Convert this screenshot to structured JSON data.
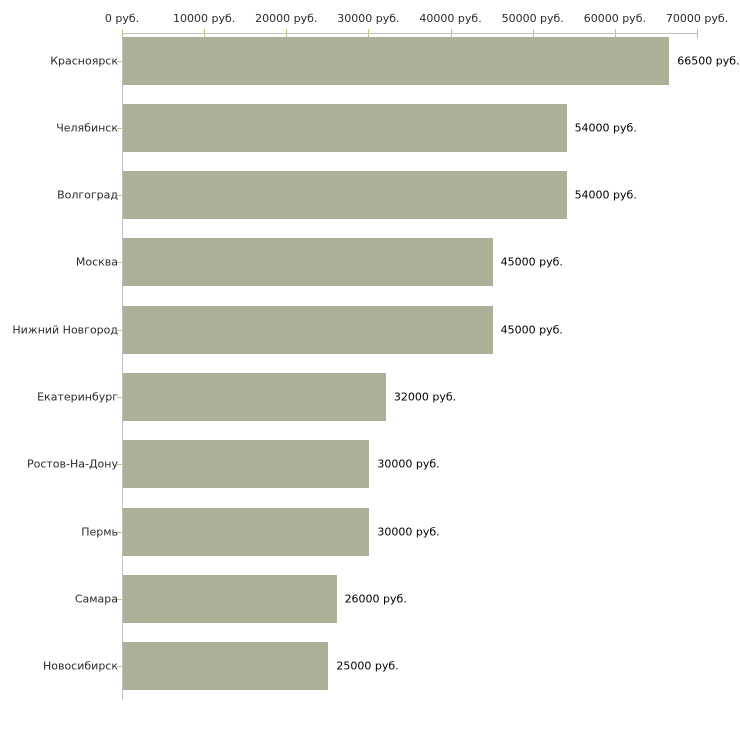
{
  "chart_data": {
    "type": "bar",
    "orientation": "horizontal",
    "title": "",
    "xlabel": "",
    "ylabel": "",
    "unit_suffix": " руб.",
    "categories": [
      "Красноярск",
      "Челябинск",
      "Волгоград",
      "Москва",
      "Нижний Новгород",
      "Екатеринбург",
      "Ростов-На-Дону",
      "Пермь",
      "Самара",
      "Новосибирск"
    ],
    "values": [
      66500,
      54000,
      54000,
      45000,
      45000,
      32000,
      30000,
      30000,
      26000,
      25000
    ],
    "value_labels": [
      "66500 руб.",
      "54000 руб.",
      "54000 руб.",
      "45000 руб.",
      "45000 руб.",
      "32000 руб.",
      "30000 руб.",
      "30000 руб.",
      "26000 руб.",
      "25000 руб."
    ],
    "x_axis": {
      "min": 0,
      "max": 70000,
      "tick_values": [
        0,
        10000,
        20000,
        30000,
        40000,
        50000,
        60000,
        70000
      ],
      "tick_labels": [
        "0 руб.",
        "10000 руб.",
        "20000 руб.",
        "30000 руб.",
        "40000 руб.",
        "50000 руб.",
        "60000 руб.",
        "70000 руб."
      ]
    },
    "grid": false,
    "legend": false,
    "colors": {
      "bar": "#abb198",
      "axis_line": "#c0c0c0",
      "tick": "#c2c28e",
      "category_label": "#2b2b2b",
      "value_label": "#000000",
      "background": "#ffffff"
    }
  }
}
